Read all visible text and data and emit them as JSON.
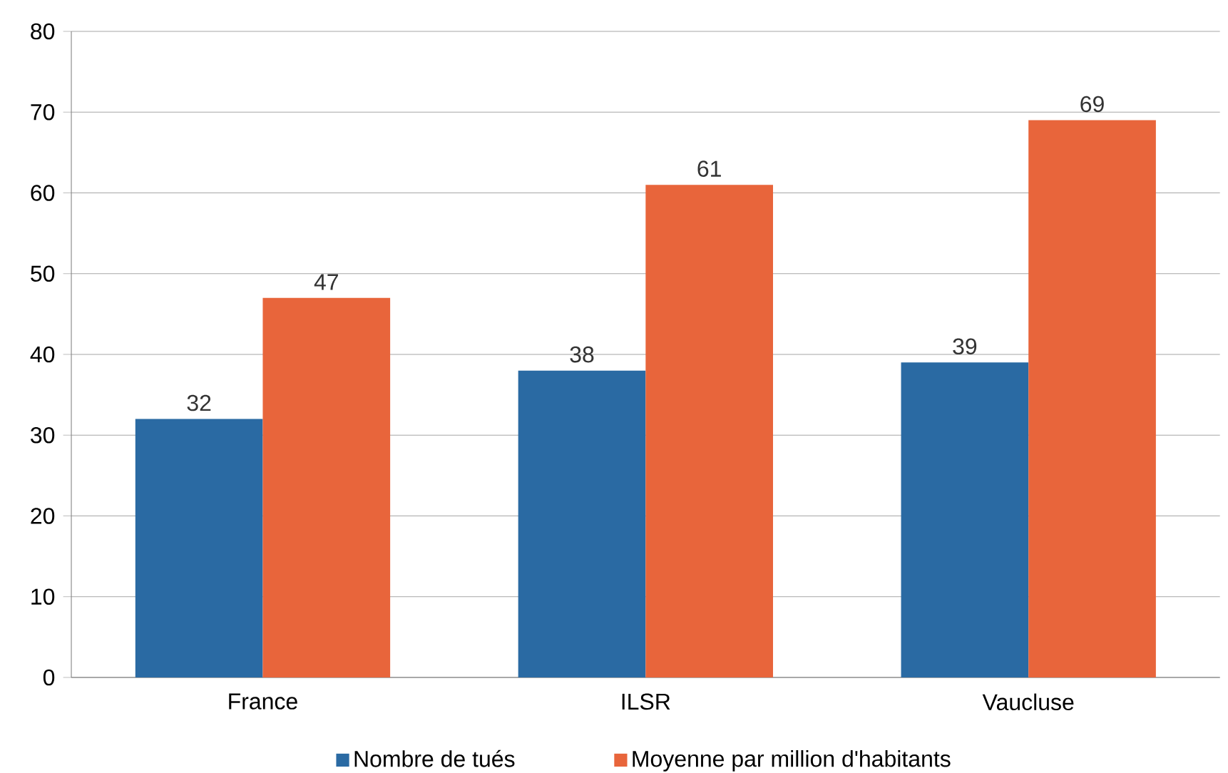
{
  "chart_data": {
    "type": "bar",
    "categories": [
      "France",
      "ILSR",
      "Vaucluse"
    ],
    "series": [
      {
        "name": "Nombre de tués",
        "color": "#2a6aa3",
        "values": [
          32,
          38,
          39
        ]
      },
      {
        "name": "Moyenne par million d'habitants",
        "color": "#e8653b",
        "values": [
          47,
          61,
          69
        ]
      }
    ],
    "ylim": [
      0,
      80
    ],
    "yticks": [
      0,
      10,
      20,
      30,
      40,
      50,
      60,
      70,
      80
    ],
    "grid": "y",
    "legend": "bottom",
    "data_labels": true
  }
}
